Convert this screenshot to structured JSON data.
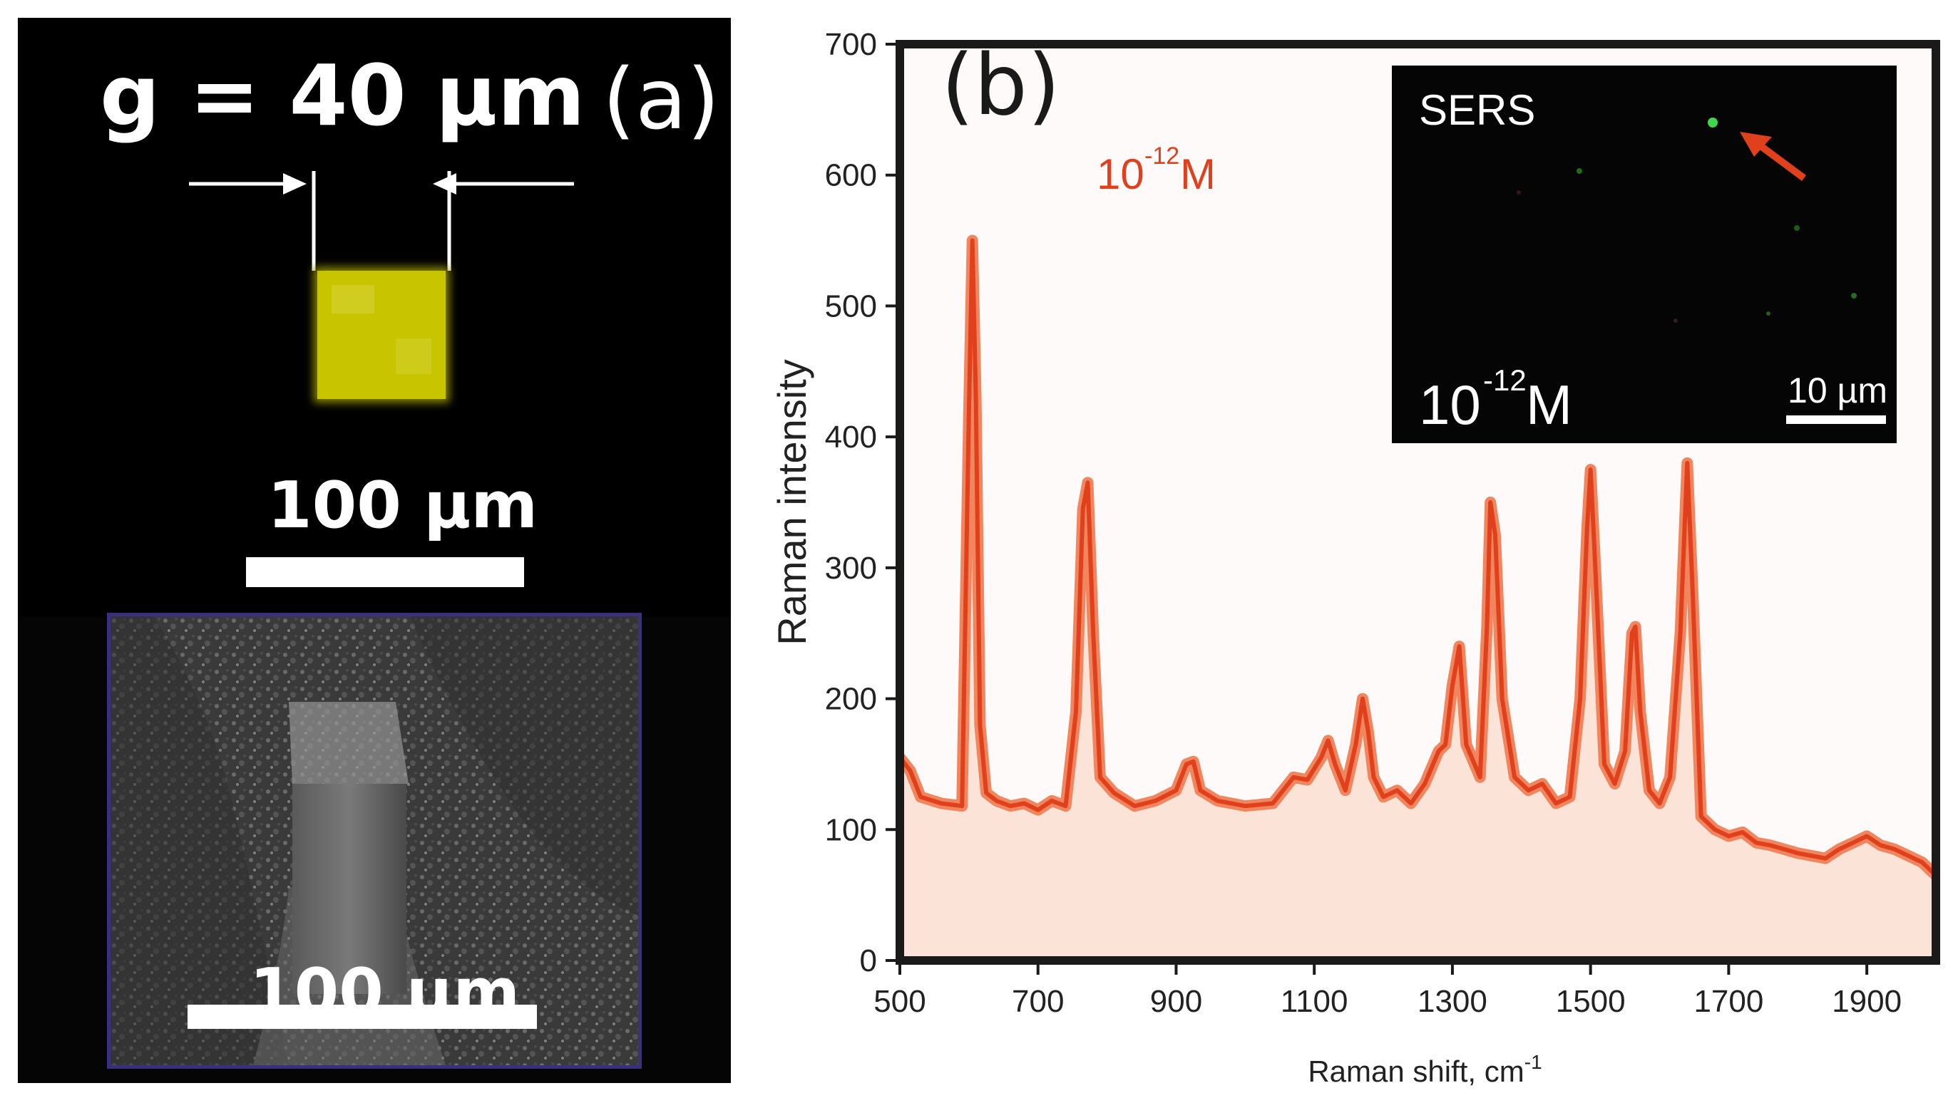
{
  "panel_a": {
    "label": "(a)",
    "gap_label": "g = 40 µm",
    "fluorescence_scale": "100 µm",
    "sem_scale": "100 µm"
  },
  "panel_b": {
    "label": "(b)",
    "concentration_label": {
      "base": "10",
      "exp": "-12",
      "unit": "M"
    },
    "inset": {
      "title": "SERS",
      "concentration": {
        "base": "10",
        "exp": "-12",
        "unit": "M"
      },
      "scale_label": "10 µm"
    }
  },
  "colors": {
    "spectrum_line": "#e0401c",
    "spectrum_band": "#f0855e",
    "spectrum_fill": "#fbe3d8",
    "fluorescence": "#c8c400",
    "sem_frame": "#3a3080"
  },
  "chart_data": {
    "type": "line",
    "title": "",
    "xlabel": "Raman shift, cm",
    "xlabel_sup": "-1",
    "ylabel": "Raman intensity",
    "xlim": [
      500,
      2000
    ],
    "ylim": [
      0,
      700
    ],
    "xticks": [
      500,
      700,
      900,
      1100,
      1300,
      1500,
      1700,
      1900
    ],
    "yticks": [
      0,
      100,
      200,
      300,
      400,
      500,
      600,
      700
    ],
    "series": [
      {
        "name": "10^-12 M",
        "x": [
          500,
          515,
          530,
          560,
          590,
          600,
          605,
          610,
          616,
          625,
          640,
          660,
          680,
          700,
          720,
          740,
          755,
          765,
          772,
          780,
          790,
          810,
          840,
          870,
          900,
          915,
          925,
          935,
          960,
          1000,
          1040,
          1070,
          1090,
          1110,
          1120,
          1130,
          1145,
          1160,
          1170,
          1178,
          1186,
          1200,
          1220,
          1240,
          1260,
          1280,
          1290,
          1300,
          1310,
          1320,
          1340,
          1350,
          1355,
          1362,
          1372,
          1390,
          1410,
          1430,
          1450,
          1470,
          1485,
          1495,
          1500,
          1507,
          1520,
          1535,
          1550,
          1560,
          1565,
          1572,
          1585,
          1600,
          1615,
          1630,
          1640,
          1648,
          1660,
          1680,
          1700,
          1720,
          1740,
          1760,
          1780,
          1800,
          1820,
          1840,
          1860,
          1880,
          1900,
          1920,
          1940,
          1960,
          1980,
          2000
        ],
        "y": [
          155,
          145,
          125,
          120,
          118,
          420,
          550,
          430,
          180,
          128,
          122,
          118,
          120,
          115,
          122,
          118,
          190,
          345,
          365,
          250,
          140,
          128,
          118,
          122,
          130,
          150,
          152,
          130,
          122,
          118,
          120,
          140,
          138,
          155,
          168,
          150,
          130,
          165,
          200,
          175,
          140,
          125,
          130,
          120,
          135,
          160,
          165,
          210,
          240,
          165,
          140,
          255,
          350,
          325,
          200,
          140,
          130,
          135,
          120,
          125,
          200,
          330,
          375,
          300,
          150,
          135,
          160,
          250,
          255,
          190,
          130,
          120,
          140,
          250,
          380,
          280,
          110,
          100,
          95,
          98,
          90,
          88,
          85,
          82,
          80,
          78,
          85,
          90,
          95,
          88,
          85,
          80,
          75,
          65
        ]
      }
    ]
  }
}
